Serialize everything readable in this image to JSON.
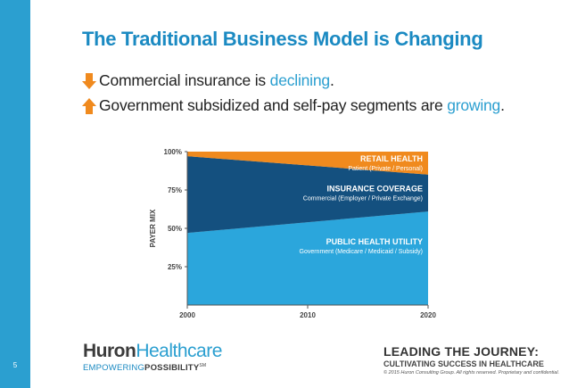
{
  "slide": {
    "number": "5",
    "title": "The Traditional Business Model is Changing",
    "bullets": [
      {
        "icon": "down-arrow-icon",
        "prefix": "Commercial insurance is ",
        "highlight": "declining",
        "suffix": "."
      },
      {
        "icon": "up-arrow-icon",
        "prefix": "Government subsidized and self-pay segments are ",
        "highlight": "growing",
        "suffix": "."
      }
    ]
  },
  "chart_data": {
    "type": "area",
    "stacked": true,
    "x": [
      2000,
      2020
    ],
    "x_ticks": [
      "2000",
      "2010",
      "2020"
    ],
    "y_ticks": [
      "25%",
      "50%",
      "75%",
      "100%"
    ],
    "ylabel": "PAYER MIX",
    "ylim": [
      0,
      100
    ],
    "series": [
      {
        "name": "PUBLIC HEALTH UTILITY",
        "sublabel": "Government (Medicare / Medicaid / Subsidy)",
        "values": [
          47,
          61
        ],
        "color": "#2ba6dc"
      },
      {
        "name": "INSURANCE COVERAGE",
        "sublabel": "Commercial (Employer / Private Exchange)",
        "values": [
          50,
          24
        ],
        "color": "#14507f"
      },
      {
        "name": "RETAIL HEALTH",
        "sublabel": "Patient (Private / Personal)",
        "values": [
          3,
          15
        ],
        "color": "#f08a1e"
      }
    ],
    "colors": {
      "axis": "#555555",
      "plot_bg": "#d9d9d9"
    }
  },
  "footer": {
    "logo_part1": "Huron",
    "logo_part2": "Healthcare",
    "tagline_part1": "EMPOWERING",
    "tagline_part2": "POSSIBILITY",
    "tagline_mark": "SM",
    "headline": "LEADING THE JOURNEY:",
    "subheadline": "CULTIVATING SUCCESS IN HEALTHCARE",
    "copyright": "© 2015 Huron Consulting Group. All rights reserved. Proprietary and confidential."
  },
  "colors": {
    "accent": "#2b9fd0",
    "title": "#1b8ac2",
    "orange": "#f08a1e"
  }
}
